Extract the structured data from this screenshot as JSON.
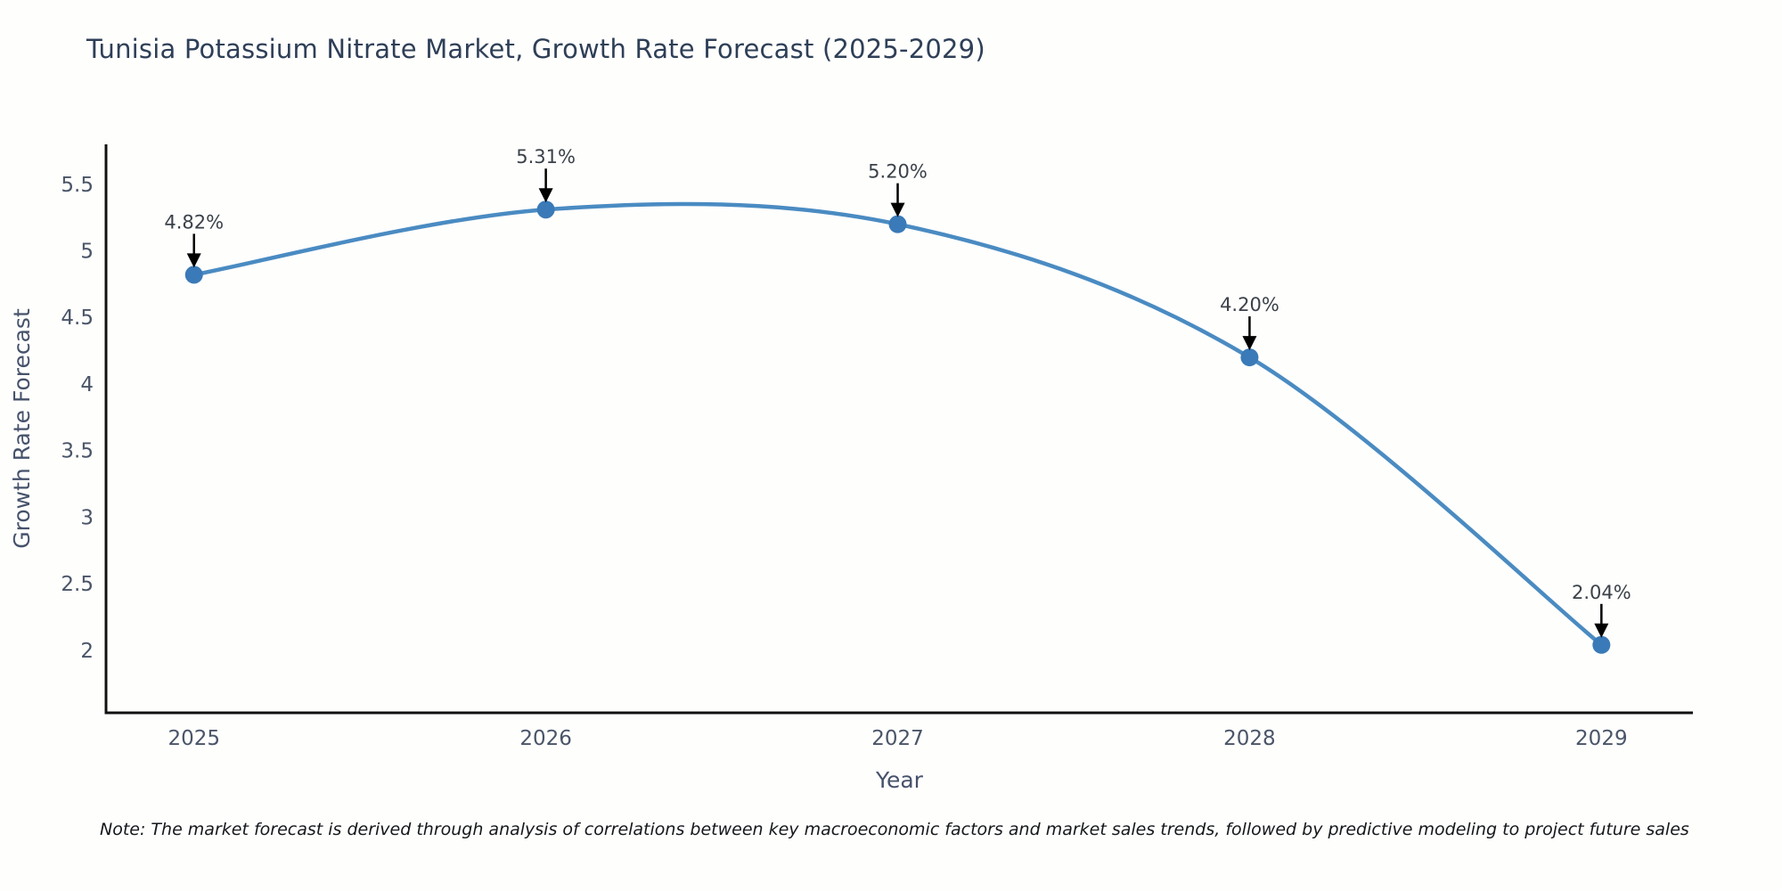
{
  "title": "Tunisia Potassium Nitrate Market, Growth Rate Forecast (2025-2029)",
  "note": "Note: The market forecast is derived through analysis of correlations between key macroeconomic factors and market sales trends, followed by predictive modeling to project future sales",
  "chart_data": {
    "type": "line",
    "title": "Tunisia Potassium Nitrate Market, Growth Rate Forecast (2025-2029)",
    "xlabel": "Year",
    "ylabel": "Growth Rate Forecast",
    "x": [
      2025,
      2026,
      2027,
      2028,
      2029
    ],
    "y": [
      4.82,
      5.31,
      5.2,
      4.2,
      2.04
    ],
    "point_labels": [
      "4.82%",
      "5.31%",
      "5.20%",
      "4.20%",
      "2.04%"
    ],
    "x_ticks": [
      "2025",
      "2026",
      "2027",
      "2028",
      "2029"
    ],
    "y_ticks": [
      "2",
      "2.5",
      "3",
      "3.5",
      "4",
      "4.5",
      "5",
      "5.5"
    ],
    "xlim": [
      2024.75,
      2029.26
    ],
    "ylim": [
      1.53,
      5.8
    ],
    "grid": false,
    "legend": "none",
    "line_shape": "spline",
    "colors": {
      "line": "#4a8bc2",
      "marker": "#3a7ab8",
      "axis": "#111111",
      "tick_text": "#4a5568",
      "axis_title_text": "#46526b",
      "annotation_text": "#3b4149",
      "annotation_arrow": "#000000",
      "title_text": "#2e3f57"
    }
  }
}
